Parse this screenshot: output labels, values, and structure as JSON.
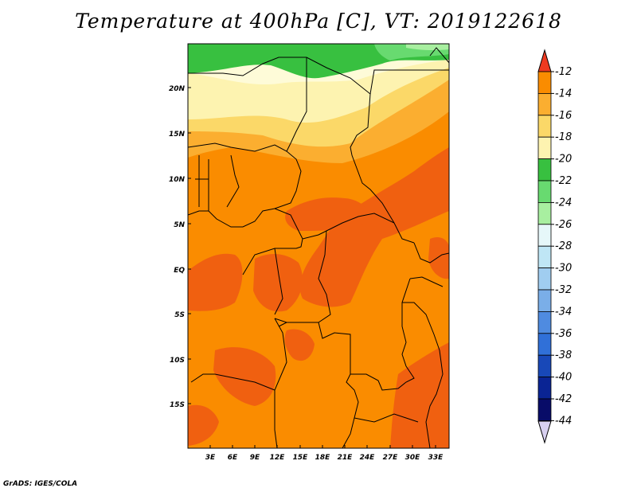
{
  "title": "Temperature at 400hPa [C], VT: 2019122618",
  "credit": "GrADS: IGES/COLA",
  "map": {
    "lat_labels": [
      "20N",
      "15N",
      "10N",
      "5N",
      "EQ",
      "5S",
      "10S",
      "15S"
    ],
    "lon_labels": [
      "3E",
      "6E",
      "9E",
      "12E",
      "15E",
      "18E",
      "21E",
      "24E",
      "27E",
      "30E",
      "33E"
    ],
    "variable": "Temperature at 400hPa",
    "units": "C"
  },
  "colorbar": {
    "labels": [
      "-12",
      "-14",
      "-16",
      "-18",
      "-20",
      "-22",
      "-24",
      "-26",
      "-28",
      "-30",
      "-32",
      "-34",
      "-36",
      "-38",
      "-40",
      "-42",
      "-44"
    ],
    "colors": [
      "#f06010",
      "#fa8c00",
      "#fbae30",
      "#fbd868",
      "#fdf3b0",
      "#38c040",
      "#68da70",
      "#a8efa0",
      "#e6f7f9",
      "#bfe6f5",
      "#a0cdf0",
      "#7aaee8",
      "#4f8be0",
      "#3070d8",
      "#1848b8",
      "#0a2494",
      "#080c68"
    ],
    "top_cap_color": "#ee3a20",
    "bottom_cap_color": "#d8d0f0"
  }
}
